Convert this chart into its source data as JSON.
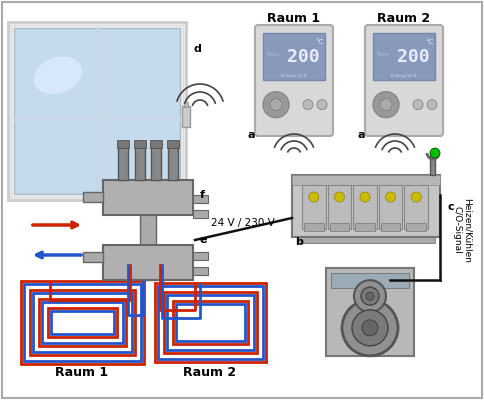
{
  "bg_color": "#ffffff",
  "border_color": "#aaaaaa",
  "title_raum1": "Raum 1",
  "title_raum2": "Raum 2",
  "label_a": "a",
  "label_b": "b",
  "label_c": "c",
  "label_d": "d",
  "label_e": "e",
  "label_f": "f",
  "voltage_label": "24 V / 230 V",
  "signal_label": "Heizen/Kühlen\nC/O-Signal",
  "bottom_raum1": "Raum 1",
  "bottom_raum2": "Raum 2",
  "red_pipe": "#cc2200",
  "blue_pipe": "#2255cc",
  "black_wire": "#111111",
  "label_fontsize": 8,
  "title_fontsize": 9
}
